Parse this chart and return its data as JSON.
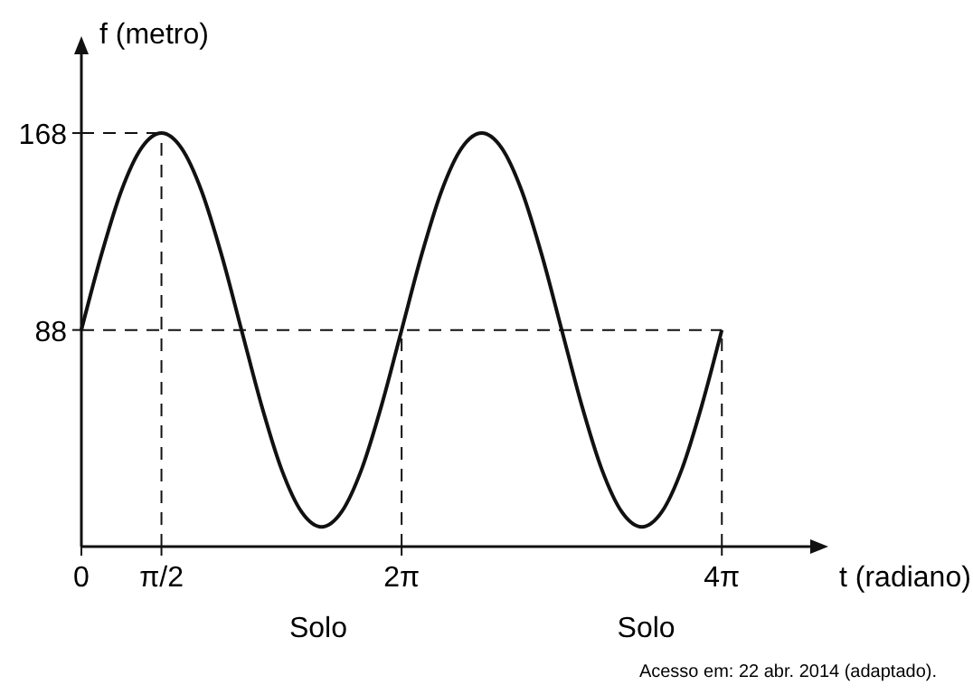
{
  "chart_data": {
    "type": "line",
    "xlabel": "t (radiano)",
    "ylabel": "f (metro)",
    "x": [
      0,
      0.393,
      0.785,
      1.178,
      1.571,
      1.963,
      2.356,
      2.749,
      3.142,
      3.534,
      3.927,
      4.32,
      4.712,
      5.105,
      5.498,
      5.89,
      6.283,
      6.676,
      7.069,
      7.461,
      7.854,
      8.247,
      8.639,
      9.032,
      9.425,
      9.817,
      10.21,
      10.603,
      10.996,
      11.388,
      11.781,
      12.174,
      12.566
    ],
    "series": [
      {
        "color": "#111111",
        "values": [
          88,
          118.6,
          144.6,
          161.9,
          168,
          161.9,
          144.6,
          118.6,
          88,
          57.4,
          31.4,
          14.1,
          8,
          14.1,
          31.4,
          57.4,
          88,
          118.6,
          144.6,
          161.9,
          168,
          161.9,
          144.6,
          118.6,
          88,
          57.4,
          31.4,
          14.1,
          8,
          14.1,
          31.4,
          57.4,
          88
        ]
      }
    ],
    "xlim": [
      0,
      14.3
    ],
    "ylim": [
      0,
      200
    ],
    "xticks": [
      0,
      {
        "value": 1.571,
        "label": "π/2"
      },
      {
        "value": 6.283,
        "label": "2π"
      },
      {
        "value": 12.566,
        "label": "4π"
      }
    ],
    "yticks": [
      88,
      168
    ],
    "ref_lines": [
      {
        "axis": "y",
        "value": 168,
        "line_style": "dashed"
      },
      {
        "axis": "y",
        "value": 88,
        "line_style": "dashed"
      },
      {
        "axis": "x",
        "value": 1.571,
        "line_style": "dashed"
      },
      {
        "axis": "x",
        "value": 6.283,
        "line_style": "dashed"
      },
      {
        "axis": "x",
        "value": 12.566,
        "line_style": "dashed"
      }
    ],
    "annotations": [
      "Solo",
      "Solo",
      "Acesso em: 22 abr. 2014 (adaptado)."
    ],
    "grid": false,
    "marker": "none",
    "line_style": "solid"
  }
}
